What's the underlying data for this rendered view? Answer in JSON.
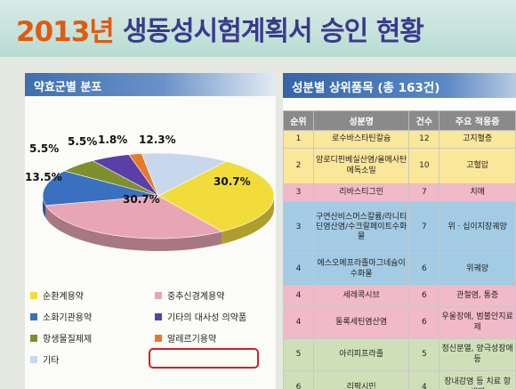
{
  "slide": {
    "title_year": "2013년",
    "title_rest": "생동성시험계획서 승인 현황"
  },
  "left_panel": {
    "header": "약효군별 분포"
  },
  "chart_data": {
    "type": "pie",
    "title": "약효군별 분포",
    "slices": [
      {
        "name": "순환계용약",
        "value": 30.7,
        "label": "30.7%",
        "color": "#f1dc3c"
      },
      {
        "name": "중추신경계용약",
        "value": 30.7,
        "label": "30.7%",
        "color": "#e8a6b4"
      },
      {
        "name": "소화기관용약",
        "value": 13.5,
        "label": "13.5%",
        "color": "#3b6fc0"
      },
      {
        "name": "항생물질제제",
        "value": 5.5,
        "label": "5.5%",
        "color": "#7f8f2e"
      },
      {
        "name": "기타의 대사성 의약품",
        "value": 5.5,
        "label": "5.5%",
        "color": "#5a3fa8"
      },
      {
        "name": "알레르기용약",
        "value": 1.8,
        "label": "1.8%",
        "color": "#e77a2a"
      },
      {
        "name": "기타",
        "value": 12.3,
        "label": "12.3%",
        "color": "#c7d8ee"
      }
    ],
    "legend_position": "bottom"
  },
  "right_panel": {
    "header": "성분별 상위품목 (총 163건)",
    "columns": [
      "순위",
      "성분명",
      "건수",
      "주요 적응증"
    ],
    "rows": [
      {
        "rank": "1",
        "name": "로수바스타틴칼슘",
        "count": "12",
        "indication": "고지혈증"
      },
      {
        "rank": "2",
        "name": "암로디핀베실산염/올메사탄메독소밀",
        "count": "10",
        "indication": "고혈압"
      },
      {
        "rank": "3",
        "name": "리바스티그민",
        "count": "7",
        "indication": "치매"
      },
      {
        "rank": "3",
        "name": "구연산비스머스칼륨/라니티딘염산염/수크랄페이트수화물",
        "count": "7",
        "indication": "위ㆍ십이지장궤양"
      },
      {
        "rank": "4",
        "name": "에스오메프라졸마그네슘이수화물",
        "count": "6",
        "indication": "위궤양"
      },
      {
        "rank": "4",
        "name": "세레콕시브",
        "count": "6",
        "indication": "관절염, 통증"
      },
      {
        "rank": "4",
        "name": "둘록세틴염산염",
        "count": "6",
        "indication": "우울장애, 범불안지료제"
      },
      {
        "rank": "5",
        "name": "아리피프라졸",
        "count": "5",
        "indication": "정신분열, 양극성장애 등"
      },
      {
        "rank": "6",
        "name": "리팍시민",
        "count": "4",
        "indication": "장내감염 등 치료 항생제"
      }
    ]
  }
}
